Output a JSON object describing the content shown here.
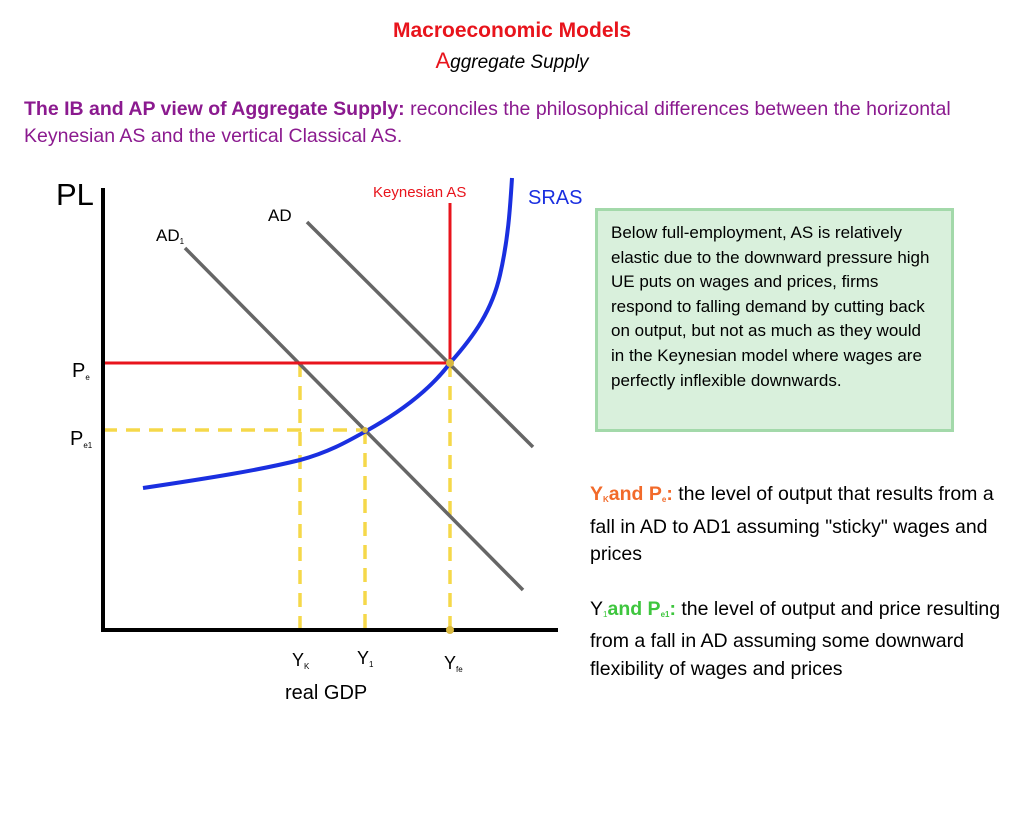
{
  "header": {
    "title": "Macroeconomic Models",
    "subtitle_initial": "A",
    "subtitle_rest": "ggregate Supply"
  },
  "intro": {
    "lead": "The IB and AP view of Aggregate Supply:",
    "text": "reconciles the philosophical differences between the horizontal Keynesian AS and the vertical Classical AS."
  },
  "diagram": {
    "y_axis": "PL",
    "x_axis": "real GDP",
    "keynesian": "Keynesian AS",
    "sras": "SRAS",
    "ad": "AD",
    "ad1": {
      "main": "AD",
      "sub": "1"
    },
    "pe": {
      "main": "P",
      "sub": "e"
    },
    "pe1": {
      "main": "P",
      "sub": "e1"
    },
    "yk": {
      "main": "Y",
      "sub": "K"
    },
    "y1": {
      "main": "Y",
      "sub": "1"
    },
    "yfe": {
      "main": "Y",
      "sub": "fe"
    }
  },
  "box": "Below full-employment, AS is relatively elastic due to the downward pressure high UE puts on wages and prices, firms respond to falling demand by cutting back on output, but not as much as they would in the Keynesian model where wages are perfectly inflexible downwards.",
  "notes": [
    {
      "a": "Y",
      "a_sub": "K",
      "b": "and P",
      "b_sub": "e",
      "colon": ":",
      "text": " the level of output that results from a fall in AD to AD1 assuming \"sticky\" wages and prices"
    },
    {
      "a": "Y",
      "a_sub": "1",
      "b": "and P",
      "b_sub": "e1",
      "colon": ":",
      "text": " the level of output and price resulting from a fall in AD assuming some downward flexibility of wages and prices"
    }
  ]
}
